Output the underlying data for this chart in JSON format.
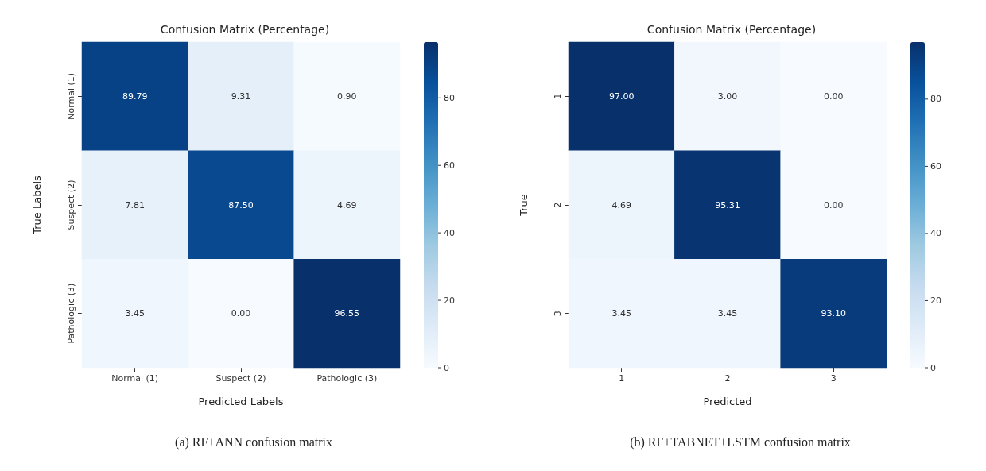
{
  "chart_data": [
    {
      "type": "heatmap",
      "title": "Confusion Matrix (Percentage)",
      "xlabel": "Predicted Labels",
      "ylabel": "True Labels",
      "categories": [
        "Normal (1)",
        "Suspect (2)",
        "Pathologic (3)"
      ],
      "y_categories": [
        "Normal (1)",
        "Suspect (2)",
        "Pathologic (3)"
      ],
      "cells": [
        [
          89.79,
          9.31,
          0.9
        ],
        [
          7.81,
          87.5,
          4.69
        ],
        [
          3.45,
          0.0,
          96.55
        ]
      ],
      "cell_labels": [
        [
          "89.79",
          "9.31",
          "0.90"
        ],
        [
          "7.81",
          "87.50",
          "4.69"
        ],
        [
          "3.45",
          "0.00",
          "96.55"
        ]
      ],
      "data_labels": true,
      "clim": [
        0,
        96.55
      ],
      "cticks": [
        0,
        20,
        40,
        60,
        80
      ],
      "annotations": [
        "(a) RF+ANN confusion matrix"
      ]
    },
    {
      "type": "heatmap",
      "title": "Confusion Matrix (Percentage)",
      "xlabel": "Predicted",
      "ylabel": "True",
      "categories": [
        "1",
        "2",
        "3"
      ],
      "y_categories": [
        "1",
        "2",
        "3"
      ],
      "cells": [
        [
          97.0,
          3.0,
          0.0
        ],
        [
          4.69,
          95.31,
          0.0
        ],
        [
          3.45,
          3.45,
          93.1
        ]
      ],
      "cell_labels": [
        [
          "97.00",
          "3.00",
          "0.00"
        ],
        [
          "4.69",
          "95.31",
          "0.00"
        ],
        [
          "3.45",
          "3.45",
          "93.10"
        ]
      ],
      "data_labels": true,
      "clim": [
        0,
        97.0
      ],
      "cticks": [
        0,
        20,
        40,
        60,
        80
      ],
      "annotations": [
        "(b) RF+TABNET+LSTM confusion matrix"
      ]
    }
  ]
}
